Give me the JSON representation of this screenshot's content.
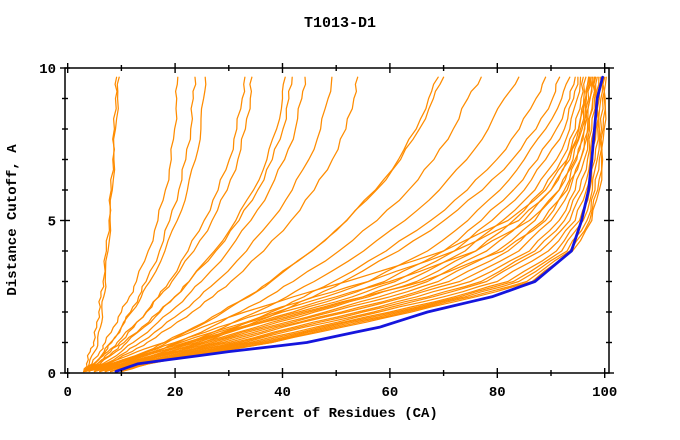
{
  "chart_data": {
    "type": "line",
    "title": "T1013-D1",
    "xlabel": "Percent of Residues (CA)",
    "ylabel": "Distance Cutoff, A",
    "xlim": [
      -0.5,
      100.8
    ],
    "ylim": [
      0,
      10
    ],
    "grid": false,
    "legend": "none",
    "x_ticks_major": [
      0,
      20,
      40,
      60,
      80,
      100
    ],
    "x_ticks_minor": [
      10,
      30,
      50,
      70,
      90
    ],
    "y_ticks_major": [
      0,
      5,
      10
    ],
    "y_ticks_minor": [
      1,
      2,
      3,
      4,
      6,
      7,
      8,
      9
    ],
    "line_color_models": "#ff8c00",
    "line_color_highlight": "#1515dd",
    "axis_color": "#000000",
    "cutoffs": [
      0.05,
      0.3,
      0.7,
      1,
      1.5,
      2,
      2.5,
      3,
      4,
      5,
      6,
      7,
      8,
      9,
      9.7
    ],
    "model_series_percent": [
      [
        3,
        3.5,
        4.2,
        4.8,
        5.4,
        5.8,
        6.2,
        6.6,
        7.2,
        7.7,
        8.1,
        8.4,
        8.7,
        8.9,
        9.1
      ],
      [
        3,
        4,
        5,
        5.6,
        6.1,
        6.4,
        6.7,
        7,
        7.5,
        7.9,
        8.3,
        8.6,
        8.9,
        9.3,
        9.6
      ],
      [
        3,
        4.5,
        6,
        7,
        8.5,
        10,
        11.5,
        12.8,
        15,
        16.8,
        18.2,
        19.3,
        19.9,
        20.3,
        20.5
      ],
      [
        3,
        5,
        7,
        8.2,
        10,
        11.7,
        13.2,
        14.6,
        17.1,
        19,
        20.7,
        22,
        22.9,
        23.4,
        23.7
      ],
      [
        3,
        4.8,
        6.8,
        8,
        10,
        11.9,
        13.7,
        15.3,
        18.1,
        20.4,
        22.3,
        23.8,
        24.8,
        25.3,
        25.6
      ],
      [
        3,
        5.5,
        8,
        9.7,
        12.3,
        14.7,
        16.9,
        18.9,
        22.4,
        25.4,
        28,
        30.1,
        31.5,
        32.5,
        33
      ],
      [
        3,
        5,
        7.5,
        9.2,
        12,
        14.6,
        17,
        19.4,
        23.5,
        26.9,
        29.7,
        31.7,
        33.1,
        34,
        34.3
      ],
      [
        3,
        6,
        9,
        11,
        14.2,
        17.2,
        20,
        22.6,
        27.3,
        31.3,
        34.6,
        37.1,
        38.9,
        40,
        40.5
      ],
      [
        3,
        5.5,
        8.5,
        10.5,
        13.8,
        17,
        19.9,
        22.6,
        27.6,
        31.9,
        35.4,
        38.1,
        40.1,
        41.2,
        41.8
      ],
      [
        3,
        6.5,
        10,
        12.2,
        15.8,
        19.1,
        22.1,
        24.9,
        29.9,
        34.1,
        37.6,
        40.4,
        42.4,
        43.6,
        44.2
      ],
      [
        3,
        7,
        11,
        13.5,
        17.5,
        21.2,
        24.6,
        27.7,
        33.3,
        37.9,
        41.8,
        44.9,
        47.1,
        48.5,
        49.2
      ],
      [
        3,
        7.5,
        12,
        14.8,
        19.2,
        23.2,
        27,
        30.4,
        36.5,
        41.6,
        45.9,
        49.3,
        51.8,
        53.3,
        54
      ],
      [
        3,
        9,
        15,
        18.5,
        24,
        29,
        33.7,
        37.9,
        45.5,
        51.9,
        57.3,
        61.6,
        64.9,
        67.2,
        69
      ],
      [
        3,
        8.5,
        14.5,
        18,
        23.5,
        28.6,
        33.4,
        37.7,
        45.4,
        52,
        57.5,
        62,
        65.5,
        68.1,
        70
      ],
      [
        3,
        10,
        16.5,
        20.5,
        26.6,
        32.1,
        37.3,
        42,
        50.5,
        57.6,
        63.5,
        68.2,
        71.8,
        74.5,
        77
      ],
      [
        3,
        11,
        18,
        22.4,
        29.1,
        35.1,
        40.8,
        45.9,
        55.1,
        62.8,
        69.2,
        74.3,
        78.3,
        81.3,
        84
      ],
      [
        3,
        12,
        19.5,
        24.2,
        31.4,
        37.9,
        44,
        49.5,
        59.3,
        67.6,
        74.4,
        79.9,
        84.1,
        87.2,
        89
      ],
      [
        3,
        12.5,
        20.3,
        25.2,
        32.6,
        39.4,
        45.7,
        51.4,
        61.6,
        70.1,
        77.2,
        82.8,
        87.2,
        90.3,
        91.6
      ],
      [
        5,
        9,
        16,
        21,
        30,
        39,
        48,
        56,
        67,
        74.5,
        80.5,
        85,
        89,
        92,
        93.5
      ],
      [
        5,
        9,
        17,
        23,
        32,
        42,
        51,
        59,
        70,
        77,
        83,
        87.5,
        91,
        93.5,
        94.5
      ],
      [
        6,
        10,
        18,
        24,
        33,
        43,
        53,
        61,
        72,
        79,
        85,
        89,
        92.5,
        94.2,
        95
      ],
      [
        6,
        10,
        19,
        25,
        35,
        45,
        55,
        63,
        74,
        81,
        87,
        91,
        93.5,
        94.9,
        95.5
      ],
      [
        6,
        10,
        19,
        26,
        36,
        46,
        56,
        65,
        76,
        83,
        88.5,
        92,
        94.5,
        95.6,
        96
      ],
      [
        6,
        11,
        20,
        27,
        37,
        48,
        58,
        67,
        78,
        85,
        90,
        93,
        95.1,
        96.1,
        96.5
      ],
      [
        7,
        11,
        21,
        28,
        38,
        49,
        60,
        69,
        80,
        87,
        91.5,
        94.1,
        95.8,
        96.6,
        97
      ],
      [
        7,
        11,
        21,
        29,
        39,
        51,
        62,
        71,
        82,
        88.5,
        92.5,
        94.8,
        96.2,
        97,
        97.3
      ],
      [
        7,
        12,
        22,
        30,
        40,
        52,
        63,
        73,
        84,
        90,
        93.5,
        95.5,
        96.8,
        97.3,
        97.6
      ],
      [
        7,
        12,
        23,
        31,
        42,
        54,
        65,
        75,
        86,
        91.5,
        94.5,
        96.2,
        97.2,
        97.8,
        98
      ],
      [
        8,
        12,
        23,
        32,
        43,
        55,
        67,
        77,
        87,
        92.5,
        95.3,
        96.8,
        97.6,
        98.1,
        98.3
      ],
      [
        8,
        13,
        24,
        33,
        44,
        57,
        68,
        78,
        88,
        93.5,
        96,
        97.3,
        98,
        98.4,
        98.6
      ],
      [
        8,
        13,
        25,
        34,
        46,
        58,
        70,
        80,
        89.5,
        94.5,
        96.6,
        97.8,
        98.4,
        98.7,
        98.9
      ],
      [
        8,
        13,
        25,
        35,
        47,
        60,
        72,
        82,
        91,
        95.3,
        97.2,
        98.2,
        98.7,
        99,
        99.2
      ],
      [
        9,
        14,
        26,
        36,
        48,
        61,
        73,
        83,
        92,
        96,
        97.7,
        98.6,
        99,
        99.3,
        99.5
      ],
      [
        9,
        14,
        27,
        37,
        49,
        62,
        74,
        84,
        93,
        96.7,
        98.2,
        99,
        99.4,
        99.6,
        99.8
      ],
      [
        9,
        15,
        27,
        38,
        50,
        63,
        75,
        85.5,
        93.5,
        97.2,
        98.7,
        99.4,
        99.7,
        99.9,
        100
      ],
      [
        10,
        15,
        28,
        38,
        51,
        64,
        76,
        86.5,
        94,
        97.6,
        99,
        99.6,
        99.9,
        100.1,
        100.3
      ],
      [
        5,
        8,
        15,
        20,
        28,
        37,
        46,
        56,
        72,
        84,
        90,
        93.5,
        95.5,
        96.6,
        97.2
      ],
      [
        4,
        7,
        13,
        18,
        25,
        33,
        42,
        52,
        70,
        82,
        89,
        93,
        95.2,
        96.4,
        97
      ],
      [
        5,
        8,
        16,
        22,
        31,
        40,
        50,
        60,
        76,
        86,
        91.5,
        94.5,
        96.3,
        97.2,
        97.7
      ],
      [
        6,
        9,
        17,
        23,
        33,
        44,
        55,
        66,
        81,
        89,
        93,
        95.5,
        97,
        97.8,
        98.2
      ]
    ],
    "highlight_series_percent": [
      9,
      13,
      30,
      44.5,
      58,
      67,
      79,
      87,
      93.8,
      95.7,
      97,
      97.6,
      98.1,
      98.6,
      99.6
    ]
  }
}
